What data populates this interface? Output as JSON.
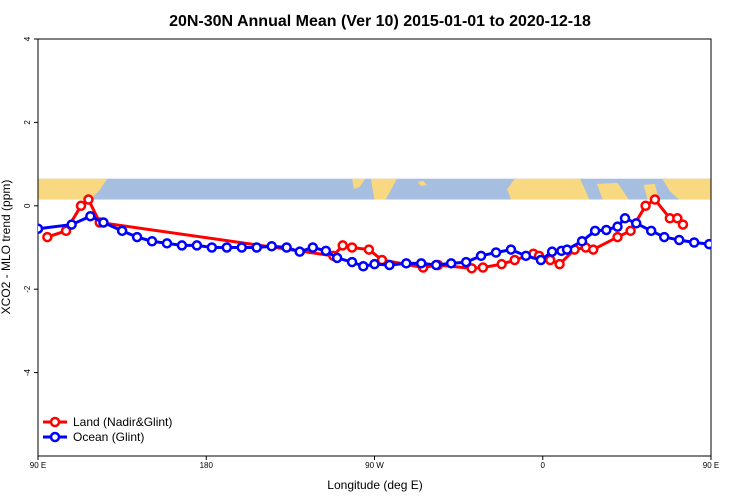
{
  "chart_data": {
    "type": "line",
    "title": "20N-30N Annual Mean (Ver 10)   2015-01-01 to 2020-12-18",
    "xlabel": "Longitude (deg E)",
    "ylabel": "XCO2 - MLO trend (ppm)",
    "xlim": [
      90,
      450
    ],
    "ylim": [
      -6,
      4
    ],
    "yticks": [
      4,
      2,
      0,
      -2,
      -4
    ],
    "xticks": [
      {
        "value": 90,
        "label": "90 E"
      },
      {
        "value": 180,
        "label": "180"
      },
      {
        "value": 270,
        "label": "90 W"
      },
      {
        "value": 360,
        "label": "0"
      },
      {
        "value": 450,
        "label": "90 E"
      },
      {
        "value": 540,
        "label": "180"
      }
    ],
    "map_band": {
      "ymin": 0.15,
      "ymax": 0.65,
      "ocean_color": "#a6bedf",
      "land_color": "#f8d880"
    },
    "legend_position": "bottom-left",
    "series": [
      {
        "name": "Land (Nadir&Glint)",
        "color": "#ff0000",
        "x": [
          95,
          105,
          113,
          117,
          123,
          248,
          253,
          258,
          267,
          274,
          296,
          304,
          322,
          328,
          338,
          345,
          355,
          358,
          364,
          369,
          377,
          383,
          387,
          400,
          407,
          415,
          420,
          428,
          432,
          435
        ],
        "y": [
          -0.75,
          -0.6,
          0.0,
          0.15,
          -0.4,
          -1.2,
          -0.95,
          -1.0,
          -1.05,
          -1.3,
          -1.48,
          -1.42,
          -1.5,
          -1.48,
          -1.4,
          -1.3,
          -1.15,
          -1.2,
          -1.3,
          -1.4,
          -1.05,
          -1.0,
          -1.05,
          -0.75,
          -0.6,
          0.0,
          0.15,
          -0.3,
          -0.3,
          -0.45
        ]
      },
      {
        "name": "Ocean (Glint)",
        "color": "#0000ff",
        "x": [
          90,
          108,
          118,
          125,
          135,
          143,
          151,
          159,
          167,
          175,
          183,
          191,
          199,
          207,
          215,
          223,
          230,
          237,
          244,
          250,
          258,
          264,
          270,
          278,
          287,
          295,
          303,
          311,
          319,
          327,
          335,
          343,
          351,
          359,
          365,
          370,
          373,
          381,
          388,
          394,
          400,
          404,
          410,
          418,
          425,
          433,
          441,
          449,
          457,
          465
        ],
        "y": [
          -0.55,
          -0.45,
          -0.25,
          -0.4,
          -0.6,
          -0.75,
          -0.85,
          -0.9,
          -0.95,
          -0.95,
          -1.0,
          -1.0,
          -1.0,
          -1.0,
          -0.97,
          -1.0,
          -1.1,
          -1.0,
          -1.08,
          -1.25,
          -1.35,
          -1.45,
          -1.4,
          -1.42,
          -1.38,
          -1.38,
          -1.42,
          -1.38,
          -1.35,
          -1.2,
          -1.12,
          -1.05,
          -1.2,
          -1.3,
          -1.1,
          -1.08,
          -1.05,
          -0.85,
          -0.6,
          -0.58,
          -0.5,
          -0.3,
          -0.42,
          -0.6,
          -0.75,
          -0.82,
          -0.88,
          -0.92,
          -0.92,
          -0.95
        ]
      }
    ]
  }
}
